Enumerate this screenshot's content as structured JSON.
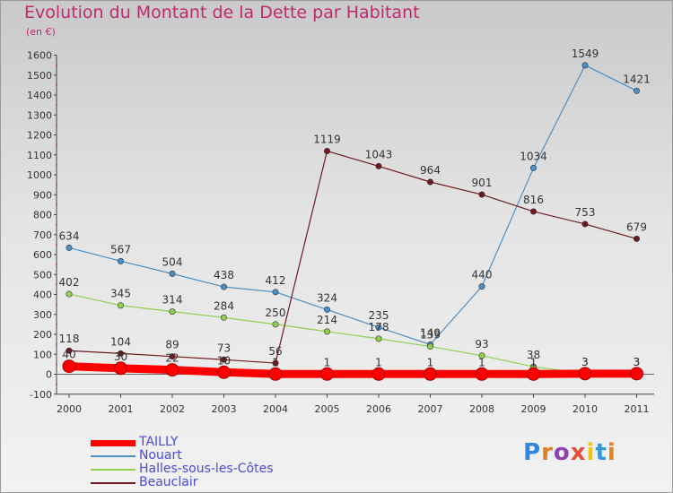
{
  "chart_data": {
    "type": "line",
    "title": "Evolution du Montant de la Dette par Habitant",
    "subtitle": "(en €)",
    "xlabel": "",
    "ylabel": "",
    "categories": [
      "2000",
      "2001",
      "2002",
      "2003",
      "2004",
      "2005",
      "2006",
      "2007",
      "2008",
      "2009",
      "2010",
      "2011"
    ],
    "ylim": [
      -100,
      1600
    ],
    "yticks": [
      -100,
      0,
      100,
      200,
      300,
      400,
      500,
      600,
      700,
      800,
      900,
      1000,
      1100,
      1200,
      1300,
      1400,
      1500,
      1600
    ],
    "grid": false,
    "legend_position": "bottom-left",
    "series": [
      {
        "name": "TAILLY",
        "color": "#ff0000",
        "values": [
          40,
          30,
          22,
          10,
          1,
          1,
          1,
          1,
          1,
          1,
          3,
          3
        ],
        "labels": [
          "40",
          "30",
          "22",
          "10",
          "1",
          "1",
          "1",
          "1",
          "1",
          "1",
          "3",
          "3"
        ]
      },
      {
        "name": "Nouart",
        "color": "#4a90c8",
        "values": [
          634,
          567,
          504,
          438,
          412,
          324,
          235,
          149,
          440,
          1034,
          1549,
          1421
        ],
        "labels": [
          "634",
          "567",
          "504",
          "438",
          "412",
          "324",
          "235",
          "149",
          "440",
          "1034",
          "1549",
          "1421"
        ]
      },
      {
        "name": "Halles-sous-les-Côtes",
        "color": "#8fd14f",
        "values": [
          402,
          345,
          314,
          284,
          250,
          214,
          178,
          139,
          93,
          38,
          3,
          3
        ],
        "labels": [
          "402",
          "345",
          "314",
          "284",
          "250",
          "214",
          "178",
          "139",
          "93",
          "38",
          "3",
          "3"
        ]
      },
      {
        "name": "Beauclair",
        "color": "#6e1a1f",
        "values": [
          118,
          104,
          89,
          73,
          56,
          1119,
          1043,
          964,
          901,
          816,
          753,
          679
        ],
        "labels": [
          "118",
          "104",
          "89",
          "73",
          "56",
          "1119",
          "1043",
          "964",
          "901",
          "816",
          "753",
          "679"
        ]
      }
    ]
  },
  "brand": {
    "text": "Proxiti",
    "colors": [
      "#2e86de",
      "#e67e22",
      "#8e44ad",
      "#e74c3c",
      "#f1c40f",
      "#3498db",
      "#e67e22"
    ]
  }
}
